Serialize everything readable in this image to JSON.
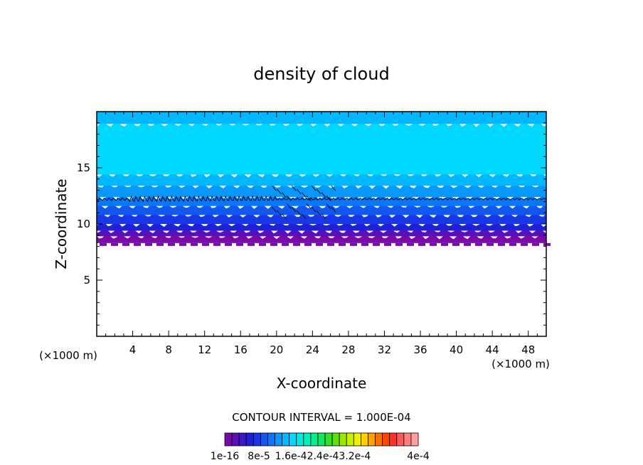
{
  "chart_data": {
    "type": "heatmap",
    "title": "density of cloud",
    "xlabel": "X-coordinate",
    "ylabel": "Z-coordinate",
    "x_unit_left": "(×1000 m)",
    "x_unit_right": "(×1000 m)",
    "xlim": [
      0,
      50
    ],
    "ylim": [
      0,
      20
    ],
    "x_ticks": [
      4,
      8,
      12,
      16,
      20,
      24,
      28,
      32,
      36,
      40,
      44,
      48
    ],
    "y_ticks": [
      5,
      10,
      15
    ],
    "contour_interval_label": "CONTOUR INTERVAL = 1.000E-04",
    "colorbar": {
      "labels": [
        "1e-16",
        "8e-5",
        "1.6e-4",
        "2.4e-4",
        "3.2e-4",
        "4e-4"
      ],
      "label_texts": [
        "1e-16",
        "8e-5",
        "1.6e-42.4e-43.2e-4",
        "4e-4"
      ],
      "colors": [
        "#7a0aa8",
        "#5a10b8",
        "#3a18c8",
        "#2020d8",
        "#1838e8",
        "#1058f0",
        "#0878f8",
        "#0898fc",
        "#00b8ff",
        "#00d8ff",
        "#00e8e0",
        "#00f0b8",
        "#00f090",
        "#10e860",
        "#30e030",
        "#60e010",
        "#98e800",
        "#c8f000",
        "#f0f000",
        "#ffd000",
        "#ffa000",
        "#ff7000",
        "#ff4800",
        "#ff3030",
        "#ff5a5a",
        "#ff8080",
        "#ffa0a0"
      ]
    },
    "layers": [
      {
        "z_from": 8.3,
        "z_to": 8.9,
        "color": "#7a0aa8"
      },
      {
        "z_from": 8.9,
        "z_to": 9.4,
        "color": "#5a10b8"
      },
      {
        "z_from": 9.4,
        "z_to": 10.0,
        "color": "#2020d8"
      },
      {
        "z_from": 10.0,
        "z_to": 10.8,
        "color": "#1838e8"
      },
      {
        "z_from": 10.8,
        "z_to": 11.6,
        "color": "#1058f0"
      },
      {
        "z_from": 11.6,
        "z_to": 12.4,
        "color": "#0878f8"
      },
      {
        "z_from": 12.4,
        "z_to": 13.4,
        "color": "#0898fc"
      },
      {
        "z_from": 13.4,
        "z_to": 14.4,
        "color": "#00b8ff"
      },
      {
        "z_from": 14.4,
        "z_to": 18.9,
        "color": "#00d8ff"
      },
      {
        "z_from": 18.9,
        "z_to": 20.0,
        "color": "#00b8ff"
      }
    ],
    "contour_line_z": 12.2
  }
}
